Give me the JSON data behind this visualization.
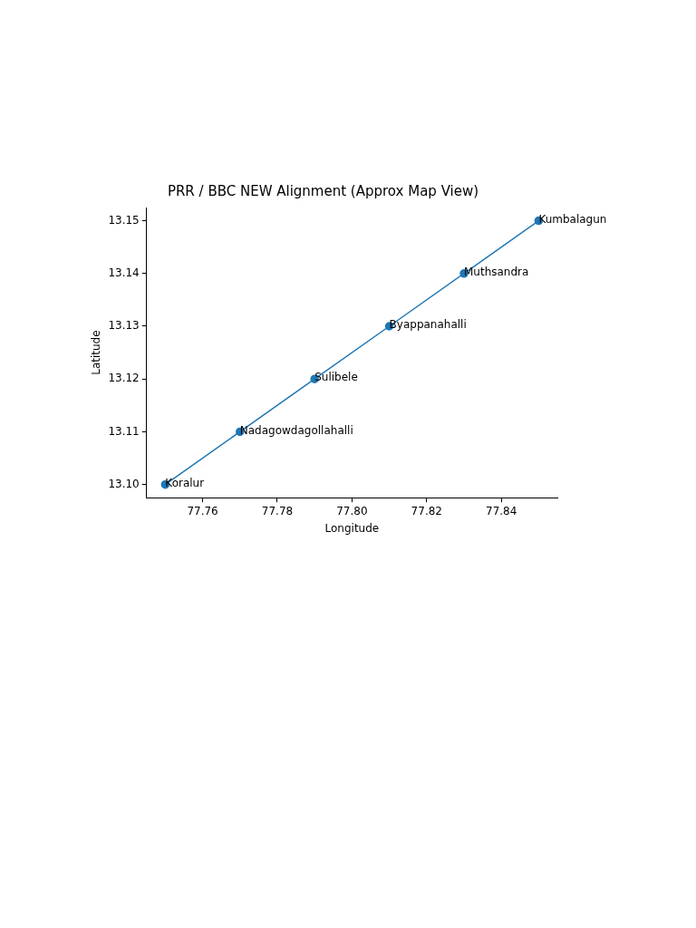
{
  "chart_data": {
    "type": "line",
    "title": "PRR / BBC NEW Alignment (Approx Map View)",
    "xlabel": "Longitude",
    "ylabel": "Latitude",
    "x": [
      77.75,
      77.77,
      77.79,
      77.81,
      77.83,
      77.85
    ],
    "series": [
      {
        "color": "#1f77b4",
        "values": [
          13.1,
          13.11,
          13.12,
          13.13,
          13.14,
          13.15
        ]
      }
    ],
    "xlim": [
      77.745,
      77.855
    ],
    "ylim": [
      13.0975,
      13.1525
    ],
    "xticks": [
      77.76,
      77.78,
      {
        "value": 77.8,
        "label": "77.80"
      },
      77.82,
      77.84
    ],
    "yticks": [
      {
        "value": 13.1,
        "label": "13.10"
      },
      13.11,
      13.12,
      13.13,
      13.14,
      13.15
    ],
    "marker": "circle",
    "line_style": "solid",
    "grid": false,
    "legend": false,
    "annotations": [
      {
        "text": "Koralur",
        "x": 77.75,
        "y": 13.1
      },
      {
        "text": "Nadagowdagollahalli",
        "x": 77.77,
        "y": 13.11
      },
      {
        "text": "Sulibele",
        "x": 77.79,
        "y": 13.12
      },
      {
        "text": "Byappanahalli",
        "x": 77.81,
        "y": 13.13
      },
      {
        "text": "Muthsandra",
        "x": 77.83,
        "y": 13.14
      },
      {
        "text": "Kumbalagun",
        "x": 77.85,
        "y": 13.15
      }
    ]
  }
}
